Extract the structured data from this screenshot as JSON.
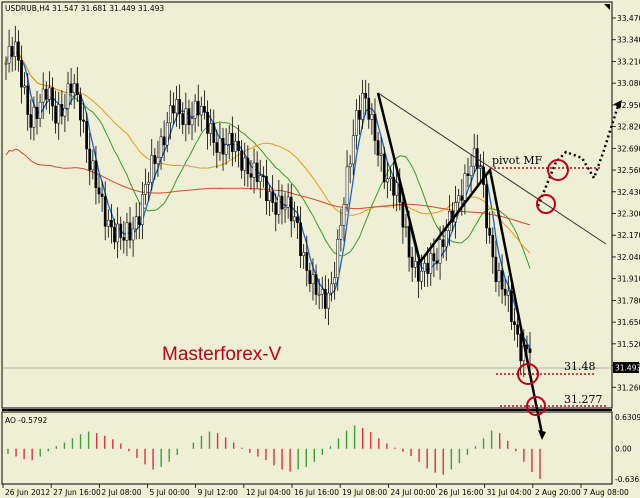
{
  "header": {
    "symbol_line": "USDRUB,H4  31.547 31.681 31.449 31.493",
    "ao_label": "AO -0.5792"
  },
  "colors": {
    "background": "#efefd6",
    "candle": "#000000",
    "line_fast": "#1f63c7",
    "line_green": "#3a9a2a",
    "line_orange": "#e89a10",
    "line_red": "#d24a2a",
    "ao_up": "#3aa03a",
    "ao_down": "#e0303a",
    "circle": "#c0001a",
    "dotted": "#c0001a",
    "brand": "#c0001a"
  },
  "annotations": {
    "brand": "Masterforex-V",
    "pivot": "pivot MF",
    "level1": "31.48",
    "level2": "31.277"
  },
  "chart_data": {
    "type": "candlestick",
    "title": "USDRUB,H4",
    "ohlc_last": {
      "open": 31.547,
      "high": 31.681,
      "low": 31.449,
      "close": 31.493
    },
    "current_price_label": "31.493",
    "ylim": [
      31.2,
      33.5
    ],
    "y_ticks": [
      "33.470",
      "33.340",
      "33.210",
      "33.080",
      "32.950",
      "32.820",
      "32.690",
      "32.560",
      "32.430",
      "32.300",
      "32.170",
      "32.040",
      "31.910",
      "31.780",
      "31.650",
      "31.520",
      "31.390",
      "31.260"
    ],
    "x_ticks": [
      "26 Jun 2012",
      "27 Jun 16:00",
      "2 Jul 08:00",
      "5 Jul 00:00",
      "9 Jul 12:00",
      "12 Jul 04:00",
      "16 Jul 16:00",
      "19 Jul 08:00",
      "24 Jul 00:00",
      "26 Jul 16:00",
      "31 Jul 04:00",
      "2 Aug 20:00",
      "7 Aug 08:00"
    ],
    "close_path": [
      33.2,
      33.28,
      33.1,
      32.86,
      32.9,
      33.06,
      32.92,
      32.9,
      33.08,
      32.95,
      32.6,
      32.42,
      32.3,
      32.2,
      32.12,
      32.2,
      32.32,
      32.48,
      32.62,
      32.8,
      32.95,
      32.85,
      32.9,
      32.96,
      32.82,
      32.75,
      32.72,
      32.7,
      32.65,
      32.6,
      32.52,
      32.45,
      32.4,
      32.35,
      32.3,
      32.25,
      32.0,
      31.82,
      31.8,
      31.85,
      32.1,
      32.5,
      32.9,
      33.0,
      32.8,
      32.65,
      32.5,
      32.4,
      32.2,
      32.0,
      31.9,
      32.0,
      32.1,
      32.2,
      32.3,
      32.5,
      32.64,
      32.55,
      32.2,
      31.95,
      31.8,
      31.65,
      31.5,
      31.49
    ],
    "moving_averages": [
      {
        "color": "#1f63c7",
        "period": 5
      },
      {
        "color": "#3a9a2a",
        "period": 20
      },
      {
        "color": "#e89a10",
        "period": 40
      },
      {
        "color": "#d24a2a",
        "period": 200
      }
    ],
    "ao_scale": {
      "max_label": "0.6309",
      "zero_label": "0.00",
      "min_label": "-0.6363"
    },
    "ao_bars": [
      -0.1,
      -0.15,
      -0.2,
      -0.22,
      -0.15,
      -0.05,
      0.05,
      0.12,
      0.2,
      0.28,
      0.33,
      0.3,
      0.25,
      0.18,
      0.1,
      -0.05,
      -0.18,
      -0.3,
      -0.4,
      -0.35,
      -0.25,
      -0.12,
      0.0,
      0.12,
      0.25,
      0.33,
      0.3,
      0.22,
      0.12,
      0.02,
      -0.08,
      -0.15,
      -0.22,
      -0.32,
      -0.4,
      -0.44,
      -0.4,
      -0.35,
      -0.25,
      -0.12,
      0.05,
      0.2,
      0.35,
      0.45,
      0.4,
      0.32,
      0.2,
      0.1,
      0.02,
      -0.06,
      -0.14,
      -0.25,
      -0.38,
      -0.46,
      -0.5,
      -0.4,
      -0.28,
      -0.12,
      0.05,
      0.2,
      0.35,
      0.3,
      0.15,
      -0.05,
      -0.25,
      -0.45,
      -0.58
    ]
  }
}
